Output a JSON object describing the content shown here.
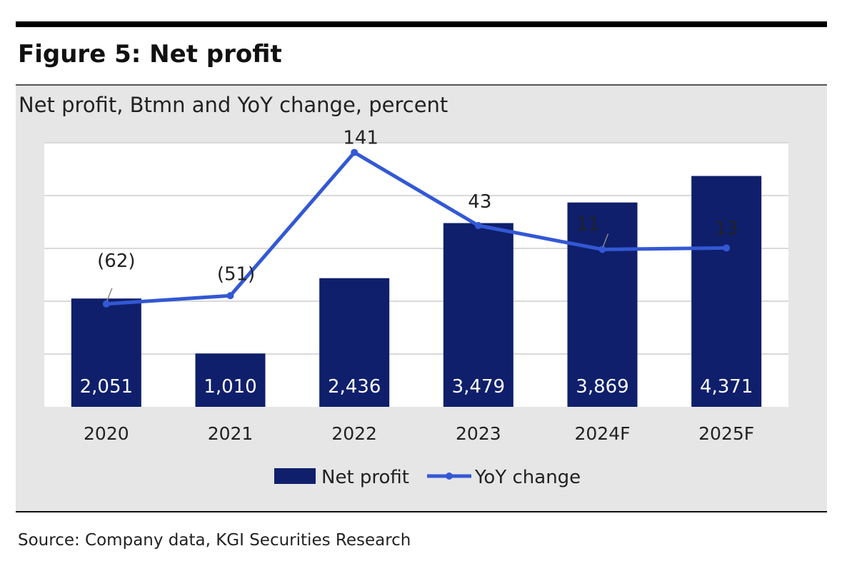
{
  "header": {
    "title": "Figure 5: Net profit"
  },
  "chart_data": {
    "type": "bar+line",
    "title": "Net profit, Btmn and YoY change, percent",
    "categories": [
      "2020",
      "2021",
      "2022",
      "2023",
      "2024F",
      "2025F"
    ],
    "series": [
      {
        "name": "Net profit",
        "type": "bar",
        "axis": "left",
        "values": [
          2051,
          1010,
          2436,
          3479,
          3869,
          4371
        ],
        "labels": [
          "2,051",
          "1,010",
          "2,436",
          "3,479",
          "3,869",
          "4,371"
        ],
        "color": "#0f1f6b"
      },
      {
        "name": "YoY change",
        "type": "line",
        "axis": "right",
        "values": [
          -62,
          -51,
          141,
          43,
          11,
          13
        ],
        "labels": [
          "(62)",
          "(51)",
          "141",
          "43",
          "11",
          "13"
        ],
        "color": "#3358d4"
      }
    ],
    "ylim": [
      0,
      5000
    ],
    "y2lim": [
      -200,
      154
    ],
    "grid": true,
    "axes_visible": false,
    "legend": "bottom"
  },
  "footer": {
    "source": "Source: Company data, KGI Securities Research"
  }
}
